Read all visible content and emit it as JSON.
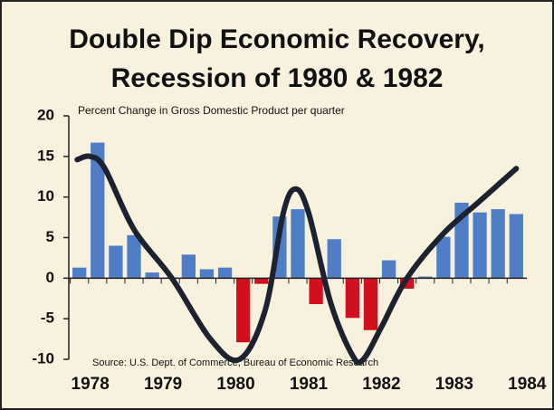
{
  "chart_data": {
    "type": "bar",
    "title": [
      "Double Dip Economic Recovery,",
      "Recession of 1980 & 1982"
    ],
    "subtitle": "Percent Change in Gross Domestic Product per quarter",
    "source": "Source: U.S. Dept. of Commerce, Bureau of Economic Research",
    "x": [
      1978,
      1978.25,
      1978.5,
      1978.75,
      1979,
      1979.25,
      1979.5,
      1979.75,
      1980,
      1980.25,
      1980.5,
      1980.75,
      1981,
      1981.25,
      1981.5,
      1981.75,
      1982,
      1982.25,
      1982.5,
      1982.75,
      1983,
      1983.25,
      1983.5,
      1983.75,
      1984
    ],
    "values": [
      1.3,
      16.7,
      4.0,
      5.3,
      0.7,
      0.1,
      2.9,
      1.1,
      1.3,
      -7.9,
      -0.7,
      7.6,
      8.5,
      -3.2,
      4.8,
      -4.9,
      -6.4,
      2.2,
      -1.3,
      0.2,
      5.1,
      9.3,
      8.1,
      8.5,
      7.9
    ],
    "positive_color": "#4f7ec6",
    "negative_color": "#d0101e",
    "curve": {
      "color": "#1c2230",
      "x": [
        1977.97,
        1978.15,
        1978.35,
        1978.75,
        1979.27,
        1979.8,
        1980.2,
        1980.55,
        1980.8,
        1980.97,
        1981.15,
        1981.45,
        1981.75,
        1981.9,
        1982.15,
        1982.5,
        1983.0,
        1983.5,
        1984.0
      ],
      "values": [
        14.6,
        15,
        13.5,
        6,
        0,
        -7.5,
        -10,
        -4,
        8,
        11,
        8,
        -3,
        -9.5,
        -10,
        -6,
        0,
        5.5,
        9.5,
        13.5
      ]
    },
    "xlim": [
      1977.78,
      1984.27
    ],
    "xticks": [
      1978,
      1979,
      1980,
      1981,
      1982,
      1983,
      1984
    ],
    "ylim": [
      -10,
      20
    ],
    "yticks": [
      -10,
      -5,
      0,
      5,
      10,
      15,
      20
    ]
  }
}
